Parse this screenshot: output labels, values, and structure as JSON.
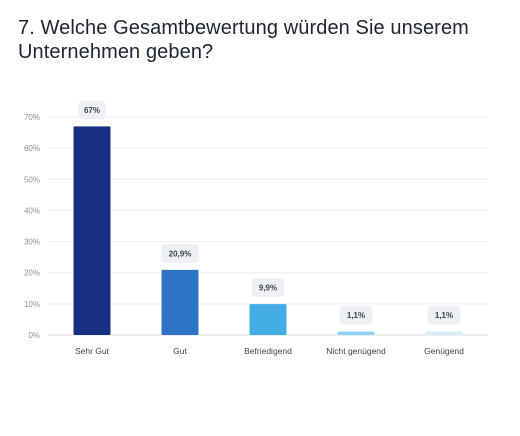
{
  "question": {
    "title": "7. Welche Gesamtbewertung würden Sie unserem Unternehmen geben?"
  },
  "chart_data": {
    "type": "bar",
    "categories": [
      "Sehr Gut",
      "Gut",
      "Befriedigend",
      "Nicht genügend",
      "Genügend"
    ],
    "values": [
      67,
      20.9,
      9.9,
      1.1,
      1.1
    ],
    "data_labels": [
      "67%",
      "20,9%",
      "9,9%",
      "1,1%",
      "1,1%"
    ],
    "bar_colors": [
      "#16307f",
      "#2e74c4",
      "#43ade4",
      "#8ed3f1",
      "#d4edf9"
    ],
    "ylim": [
      0,
      70
    ],
    "y_ticks": [
      0,
      10,
      20,
      30,
      40,
      50,
      60,
      70
    ],
    "y_tick_labels": [
      "0%",
      "10%",
      "20%",
      "30%",
      "40%",
      "50%",
      "60%",
      "70%"
    ],
    "grid": true,
    "legend": "none"
  }
}
